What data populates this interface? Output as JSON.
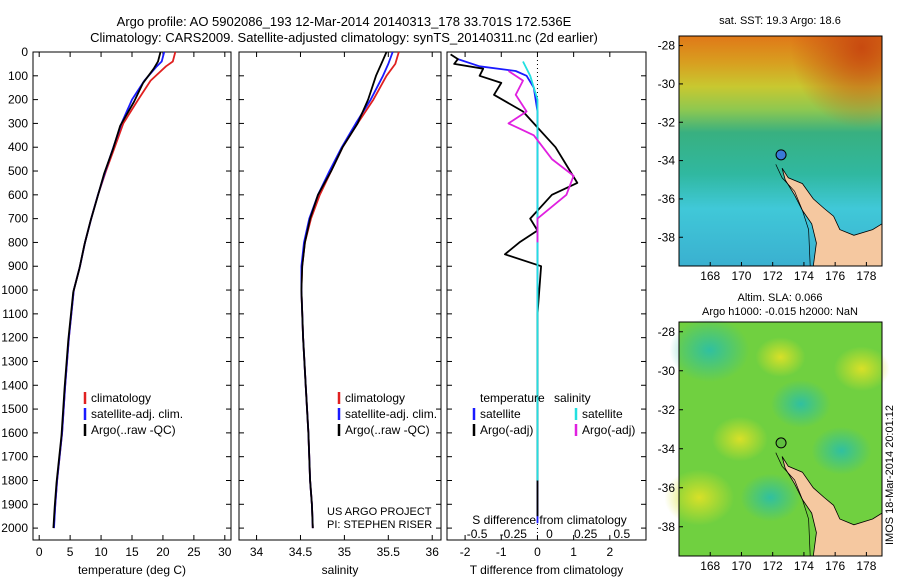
{
  "header": {
    "line1": "Argo profile: AO 5902086_193 12-Mar-2014 20140313_178 33.701S 172.536E",
    "line2": "Climatology: CARS2009. Satellite-adjusted climatology: synTS_20140311.nc (2d earlier)"
  },
  "side_stamp": "IMOS 18-Mar-2014 20:01:12",
  "credit": {
    "line1": "US ARGO PROJECT",
    "line2": "PI: STEPHEN RISER"
  },
  "colors": {
    "climatology": "#e02020",
    "satellite": "#1a1aff",
    "argo": "#000000",
    "sat_salinity": "#22e0e0",
    "argo_salinity": "#e020e0",
    "land": "#f5c8a0"
  },
  "chart_data": [
    {
      "type": "line",
      "name": "temperature-profile",
      "xlabel": "temperature (deg C)",
      "xlim": [
        -1,
        31
      ],
      "ylim": [
        0,
        2050
      ],
      "xticks": [
        0,
        5,
        10,
        15,
        20,
        25,
        30
      ],
      "yticks": [
        0,
        100,
        200,
        300,
        400,
        500,
        600,
        700,
        800,
        900,
        1000,
        1100,
        1200,
        1300,
        1400,
        1500,
        1600,
        1700,
        1800,
        1900,
        2000
      ],
      "legend": [
        "climatology",
        "satellite-adj. clim.",
        "Argo(..raw -QC)"
      ],
      "series": [
        {
          "name": "climatology",
          "color": "#e02020",
          "x": [
            22,
            21.6,
            20.5,
            18,
            16,
            13.6,
            12.2,
            10.8,
            9.5,
            8.4,
            7.4,
            6.6,
            5.6,
            4.8,
            4.2,
            3.7,
            3.3,
            2.9,
            2.6,
            2.35
          ],
          "y": [
            0,
            40,
            60,
            120,
            200,
            300,
            400,
            500,
            600,
            700,
            800,
            900,
            1000,
            1200,
            1400,
            1600,
            1700,
            1800,
            1900,
            2000
          ]
        },
        {
          "name": "satellite-adj. clim.",
          "color": "#1a1aff",
          "x": [
            20.2,
            19.8,
            19,
            17,
            15,
            13.3,
            12,
            10.7,
            9.5,
            8.4,
            7.4,
            6.6,
            5.6,
            4.8,
            4.2,
            3.7,
            3.3,
            2.9,
            2.6,
            2.4
          ],
          "y": [
            0,
            40,
            60,
            120,
            200,
            300,
            400,
            500,
            600,
            700,
            800,
            900,
            1000,
            1200,
            1400,
            1600,
            1700,
            1800,
            1900,
            2000
          ]
        },
        {
          "name": "Argo(..raw -QC)",
          "color": "#000000",
          "x": [
            19.6,
            19.2,
            18.5,
            16.8,
            15.3,
            13.1,
            11.9,
            10.5,
            9.4,
            8.3,
            7.3,
            6.5,
            5.5,
            4.7,
            4.1,
            3.6,
            3.2,
            2.8,
            2.5,
            2.3
          ],
          "y": [
            0,
            40,
            70,
            130,
            210,
            310,
            410,
            510,
            610,
            710,
            810,
            910,
            1010,
            1210,
            1410,
            1610,
            1710,
            1810,
            1910,
            2000
          ]
        }
      ]
    },
    {
      "type": "line",
      "name": "salinity-profile",
      "xlabel": "salinity",
      "xlim": [
        33.8,
        36.1
      ],
      "ylim": [
        0,
        2050
      ],
      "xticks": [
        34,
        34.5,
        35,
        35.5,
        36
      ],
      "legend": [
        "climatology",
        "satellite-adj. clim.",
        "Argo(..raw -QC)"
      ],
      "series": [
        {
          "name": "climatology",
          "color": "#e02020",
          "x": [
            35.62,
            35.58,
            35.48,
            35.33,
            35.15,
            34.98,
            34.85,
            34.72,
            34.62,
            34.55,
            34.52,
            34.51,
            34.53,
            34.56,
            34.59,
            34.61,
            34.63,
            34.64
          ],
          "y": [
            0,
            50,
            100,
            200,
            300,
            400,
            500,
            600,
            700,
            800,
            900,
            1000,
            1200,
            1400,
            1600,
            1800,
            1900,
            2000
          ]
        },
        {
          "name": "satellite-adj. clim.",
          "color": "#1a1aff",
          "x": [
            35.55,
            35.5,
            35.44,
            35.3,
            35.13,
            34.97,
            34.83,
            34.7,
            34.6,
            34.54,
            34.51,
            34.51,
            34.53,
            34.56,
            34.59,
            34.61,
            34.63,
            34.64
          ],
          "y": [
            0,
            50,
            100,
            200,
            300,
            400,
            500,
            600,
            700,
            800,
            900,
            1000,
            1200,
            1400,
            1600,
            1800,
            1900,
            2000
          ]
        },
        {
          "name": "Argo(..raw -QC)",
          "color": "#000000",
          "x": [
            35.48,
            35.42,
            35.36,
            35.27,
            35.15,
            34.98,
            34.85,
            34.7,
            34.61,
            34.55,
            34.52,
            34.51,
            34.53,
            34.56,
            34.59,
            34.61,
            34.63,
            34.64
          ],
          "y": [
            0,
            50,
            100,
            200,
            300,
            400,
            500,
            600,
            700,
            800,
            900,
            1000,
            1200,
            1400,
            1600,
            1800,
            1900,
            2000
          ]
        }
      ]
    },
    {
      "type": "line",
      "name": "difference-profile",
      "xlabel": "T difference from climatology",
      "xlabel_top": "S difference from climatology",
      "xlim": [
        -2.5,
        3.0
      ],
      "ylim": [
        0,
        2050
      ],
      "xticks": [
        -2,
        -1,
        0,
        1,
        2
      ],
      "top_tick_labels": [
        "-0.5",
        "-0.25",
        "0",
        "0.25",
        "0.5"
      ],
      "legend_left_title": "temperature",
      "legend_right_title": "salinity",
      "legend": [
        "satellite",
        "Argo(-adj)",
        "satellite",
        "Argo(-adj)"
      ],
      "series": [
        {
          "name": "T satellite",
          "color": "#1a1aff",
          "x": [
            -2.2,
            -1.6,
            -0.6,
            -0.3,
            -0.1,
            0.0,
            0.0,
            0.0,
            0.0,
            0.0,
            0.0,
            0.0,
            0.0
          ],
          "y": [
            30,
            60,
            80,
            100,
            150,
            250,
            400,
            600,
            800,
            1000,
            1400,
            1800,
            1980
          ]
        },
        {
          "name": "T Argo(-adj)",
          "color": "#000000",
          "x": [
            -2.4,
            -2.2,
            -2.3,
            -1.5,
            -1.6,
            -1.0,
            -1.2,
            -0.4,
            -0.1,
            0.5,
            0.7,
            1.1,
            0.4,
            -0.2,
            0.0,
            -0.5,
            -0.9,
            0.1,
            0.0,
            0.0,
            0.0
          ],
          "y": [
            10,
            30,
            50,
            70,
            100,
            130,
            180,
            250,
            300,
            400,
            450,
            550,
            600,
            700,
            750,
            800,
            850,
            900,
            1100,
            1500,
            1950
          ]
        },
        {
          "name": "S satellite",
          "color": "#22e0e0",
          "x": [
            -0.4,
            -0.2,
            0.0,
            0.0,
            0.0,
            0.0,
            0.0,
            0.0,
            0.0
          ],
          "y": [
            40,
            100,
            200,
            400,
            600,
            800,
            1000,
            1400,
            1800
          ]
        },
        {
          "name": "S Argo(-adj)",
          "color": "#e020e0",
          "x": [
            -0.8,
            -0.4,
            -0.6,
            -0.3,
            -0.8,
            -0.1,
            0.4,
            1.0,
            0.8,
            0.0,
            0.0
          ],
          "y": [
            80,
            120,
            180,
            250,
            300,
            350,
            450,
            520,
            600,
            700,
            800
          ]
        }
      ]
    },
    {
      "type": "heatmap",
      "name": "sst-map",
      "title": "sat. SST: 19.3 Argo: 18.6",
      "xlim": [
        166,
        179
      ],
      "ylim": [
        -39.5,
        -27.5
      ],
      "xticks": [
        168,
        170,
        172,
        174,
        176,
        178
      ],
      "yticks": [
        -28,
        -30,
        -32,
        -34,
        -36,
        -38
      ],
      "argo_position": {
        "lon": 172.536,
        "lat": -33.701
      }
    },
    {
      "type": "heatmap",
      "name": "sla-map",
      "title_line1": "Altim. SLA: 0.066",
      "title_line2": "Argo h1000: -0.015 h2000: NaN",
      "xlim": [
        166,
        179
      ],
      "ylim": [
        -39.5,
        -27.5
      ],
      "xticks": [
        168,
        170,
        172,
        174,
        176,
        178
      ],
      "yticks": [
        -28,
        -30,
        -32,
        -34,
        -36,
        -38
      ],
      "argo_position": {
        "lon": 172.536,
        "lat": -33.701
      }
    }
  ]
}
